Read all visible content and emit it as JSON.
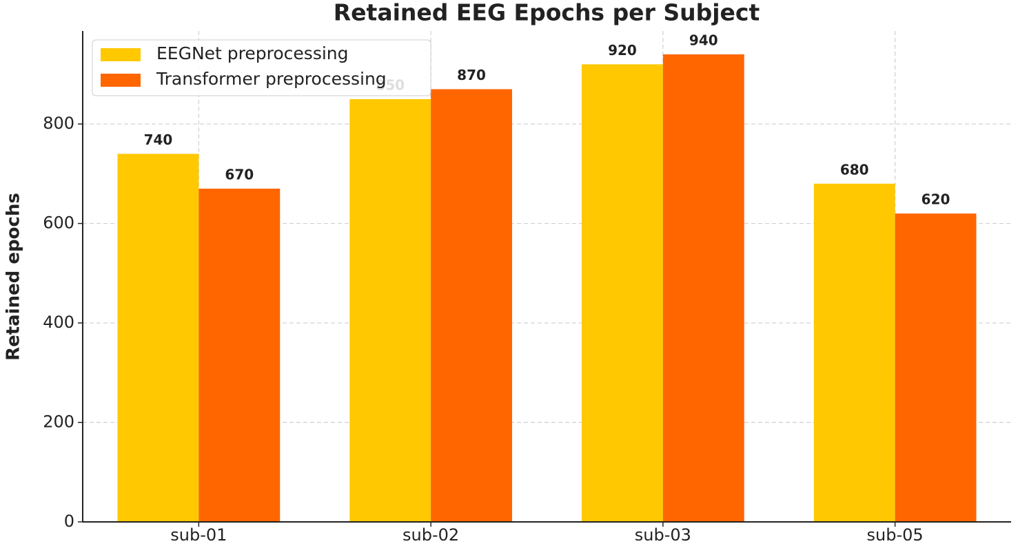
{
  "chart_data": {
    "type": "bar",
    "title": "Retained EEG Epochs per Subject",
    "y_label": "Retained epochs",
    "categories": [
      "sub-01",
      "sub-02",
      "sub-03",
      "sub-05"
    ],
    "series": [
      {
        "name": "EEGNet preprocessing",
        "color": "#ffc800",
        "values": [
          740,
          850,
          920,
          680
        ]
      },
      {
        "name": "Transformer preprocessing",
        "color": "#ff6600",
        "values": [
          670,
          870,
          940,
          620
        ]
      }
    ],
    "ylim": [
      0,
      987
    ],
    "yticks": [
      0,
      200,
      400,
      600,
      800
    ],
    "grid": true,
    "legend": "upper left"
  }
}
